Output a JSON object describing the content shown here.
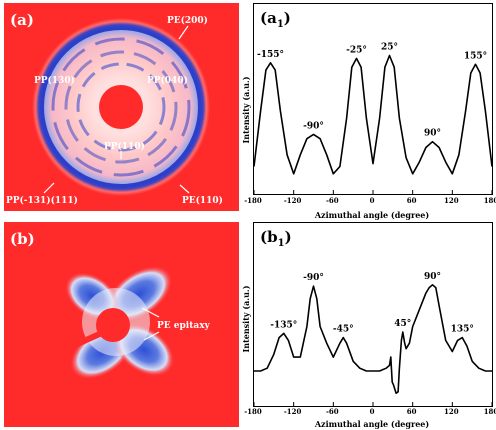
{
  "panels": {
    "a": {
      "tag": "(a)",
      "labels": [
        "PE(200)",
        "PP(130)",
        "PP(040)",
        "PP(110)",
        "PP(-131)(111)",
        "PE(110)"
      ]
    },
    "b": {
      "tag": "(b)",
      "labels": [
        "PE epitaxy"
      ]
    }
  },
  "colors": {
    "background_red": "#ff2a2a",
    "ring_blue": "#2d3fc8"
  },
  "chart_data": [
    {
      "type": "line",
      "tag_main": "(a",
      "tag_sub": "1",
      "tag_close": ")",
      "xlabel": "Azimuthal angle (degree)",
      "ylabel": "Intensity (a.u.)",
      "xlim": [
        -180,
        180
      ],
      "xticks": [
        -180,
        -120,
        -60,
        0,
        60,
        120,
        180
      ],
      "ylim": [
        0,
        1
      ],
      "x": [
        -180,
        -170,
        -162,
        -155,
        -148,
        -140,
        -130,
        -120,
        -110,
        -100,
        -90,
        -80,
        -70,
        -60,
        -50,
        -40,
        -32,
        -25,
        -18,
        -10,
        0,
        10,
        18,
        25,
        32,
        40,
        50,
        60,
        70,
        80,
        90,
        100,
        110,
        120,
        130,
        140,
        148,
        155,
        162,
        170,
        180
      ],
      "y": [
        0.12,
        0.5,
        0.78,
        0.83,
        0.78,
        0.5,
        0.2,
        0.07,
        0.2,
        0.31,
        0.34,
        0.31,
        0.2,
        0.07,
        0.12,
        0.45,
        0.8,
        0.86,
        0.8,
        0.45,
        0.14,
        0.45,
        0.8,
        0.88,
        0.8,
        0.45,
        0.18,
        0.07,
        0.15,
        0.25,
        0.29,
        0.25,
        0.15,
        0.07,
        0.2,
        0.5,
        0.76,
        0.82,
        0.76,
        0.5,
        0.12
      ],
      "annotations": [
        {
          "text": "-155°",
          "x": -155
        },
        {
          "text": "-90°",
          "x": -90
        },
        {
          "text": "-25°",
          "x": -25
        },
        {
          "text": "25°",
          "x": 25
        },
        {
          "text": "90°",
          "x": 90
        },
        {
          "text": "155°",
          "x": 155
        }
      ]
    },
    {
      "type": "line",
      "tag_main": "(b",
      "tag_sub": "1",
      "tag_close": ")",
      "xlabel": "Azimuthal angle (degree)",
      "ylabel": "Intensity (a.u.)",
      "xlim": [
        -180,
        180
      ],
      "xticks": [
        -180,
        -120,
        -60,
        0,
        60,
        120,
        180
      ],
      "ylim": [
        0,
        1
      ],
      "x": [
        -180,
        -170,
        -160,
        -150,
        -142,
        -135,
        -128,
        -120,
        -110,
        -100,
        -95,
        -90,
        -85,
        -80,
        -70,
        -60,
        -50,
        -45,
        -40,
        -30,
        -20,
        -10,
        0,
        10,
        20,
        25,
        27,
        29,
        31,
        33,
        35,
        38,
        40,
        43,
        45,
        48,
        50,
        55,
        60,
        70,
        80,
        85,
        90,
        95,
        100,
        110,
        120,
        128,
        135,
        142,
        150,
        160,
        170,
        180
      ],
      "y": [
        0.18,
        0.18,
        0.2,
        0.3,
        0.42,
        0.45,
        0.4,
        0.28,
        0.28,
        0.5,
        0.7,
        0.79,
        0.7,
        0.5,
        0.38,
        0.28,
        0.38,
        0.42,
        0.38,
        0.25,
        0.2,
        0.18,
        0.18,
        0.18,
        0.2,
        0.22,
        0.28,
        0.1,
        0.08,
        0.05,
        0.02,
        0.03,
        0.2,
        0.4,
        0.46,
        0.38,
        0.34,
        0.38,
        0.5,
        0.62,
        0.74,
        0.78,
        0.8,
        0.78,
        0.65,
        0.4,
        0.32,
        0.4,
        0.42,
        0.36,
        0.25,
        0.2,
        0.18,
        0.18
      ],
      "annotations": [
        {
          "text": "-135°",
          "x": -135
        },
        {
          "text": "-90°",
          "x": -90
        },
        {
          "text": "-45°",
          "x": -45
        },
        {
          "text": "45°",
          "x": 45
        },
        {
          "text": "90°",
          "x": 90
        },
        {
          "text": "135°",
          "x": 135
        }
      ]
    }
  ]
}
